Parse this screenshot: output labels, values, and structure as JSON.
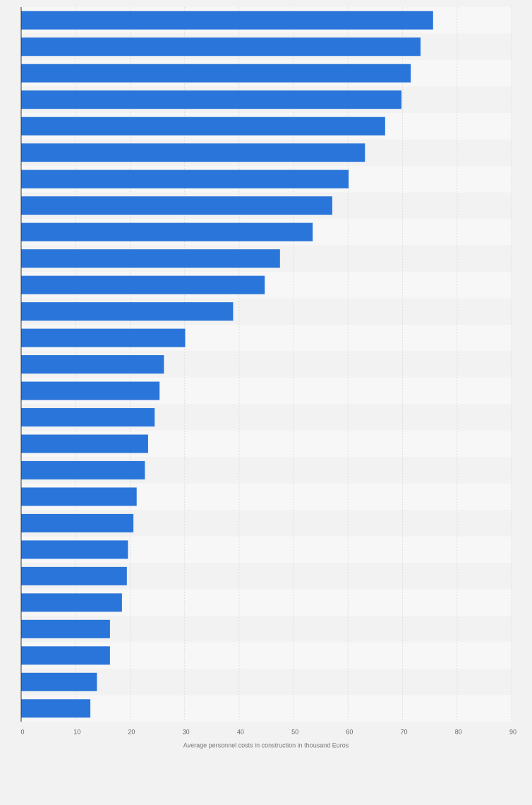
{
  "chart_data": {
    "type": "hbar",
    "x_label": "Average personnel costs in construction in thousand Euros",
    "categories": [
      null,
      null,
      null,
      null,
      null,
      null,
      null,
      null,
      null,
      null,
      null,
      null,
      null,
      null,
      null,
      null,
      null,
      null,
      null,
      null,
      null,
      null,
      null,
      null,
      null,
      null,
      null
    ],
    "values": [
      75.6,
      73.3,
      71.5,
      69.8,
      66.8,
      63.1,
      60.1,
      57.1,
      53.5,
      47.5,
      44.7,
      38.9,
      30.1,
      26.2,
      25.4,
      24.5,
      23.3,
      22.7,
      21.2,
      20.6,
      19.6,
      19.4,
      18.5,
      16.3,
      16.3,
      13.9,
      12.7
    ],
    "color": "#2a75d9",
    "xlim": [
      0,
      90
    ],
    "xticks": [
      0,
      10,
      20,
      30,
      40,
      50,
      60,
      70,
      80,
      90
    ],
    "grid": true
  }
}
